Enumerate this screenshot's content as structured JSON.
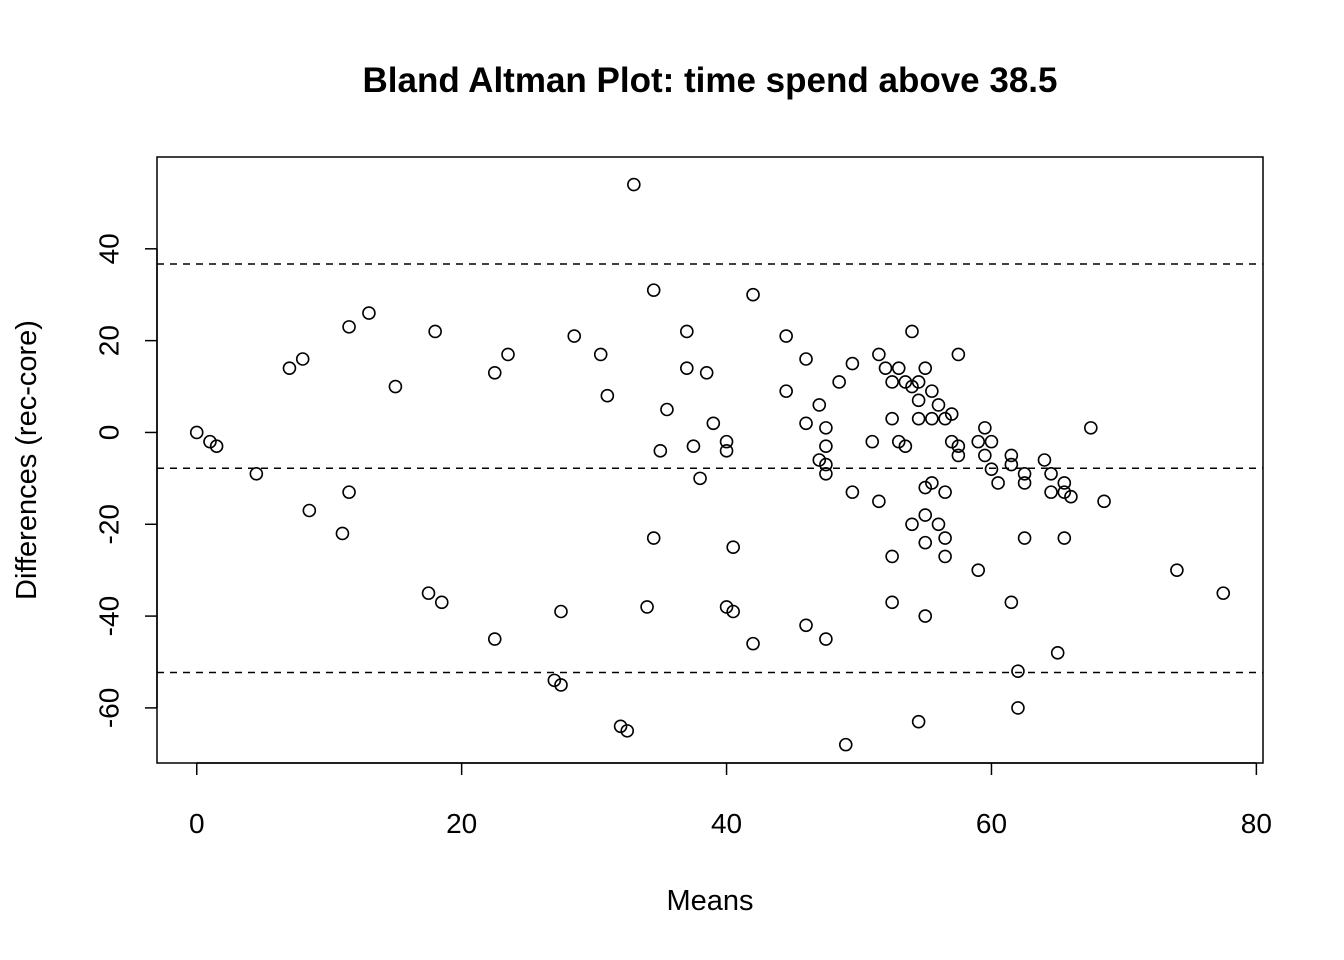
{
  "chart_data": {
    "type": "scatter",
    "title": "Bland Altman Plot: time spend above 38.5",
    "xlabel": "Means",
    "ylabel": "Differences (rec-core)",
    "xlim": [
      -3,
      80.5
    ],
    "ylim": [
      -72,
      60
    ],
    "x_ticks": [
      0,
      20,
      40,
      60,
      80
    ],
    "y_ticks": [
      -60,
      -40,
      -20,
      0,
      20,
      40
    ],
    "grid": false,
    "legend": "none",
    "marker": "open-circle",
    "hlines": [
      {
        "y": 36.7,
        "style": "dashed"
      },
      {
        "y": -7.8,
        "style": "dashed"
      },
      {
        "y": -52.3,
        "style": "dashed"
      }
    ],
    "points": [
      [
        0,
        0
      ],
      [
        1,
        -2
      ],
      [
        1.5,
        -3
      ],
      [
        4.5,
        -9
      ],
      [
        7,
        14
      ],
      [
        8,
        16
      ],
      [
        8.5,
        -17
      ],
      [
        11,
        -22
      ],
      [
        11.5,
        23
      ],
      [
        11.5,
        -13
      ],
      [
        13,
        26
      ],
      [
        15,
        10
      ],
      [
        17.5,
        -35
      ],
      [
        18,
        22
      ],
      [
        18.5,
        -37
      ],
      [
        22.5,
        13
      ],
      [
        22.5,
        -45
      ],
      [
        23.5,
        17
      ],
      [
        27,
        -54
      ],
      [
        27.5,
        -55
      ],
      [
        27.5,
        -39
      ],
      [
        28.5,
        21
      ],
      [
        30.5,
        17
      ],
      [
        31,
        8
      ],
      [
        32,
        -64
      ],
      [
        32.5,
        -65
      ],
      [
        33,
        54
      ],
      [
        34,
        -38
      ],
      [
        34.5,
        31
      ],
      [
        34.5,
        -23
      ],
      [
        35,
        -4
      ],
      [
        35.5,
        5
      ],
      [
        37,
        22
      ],
      [
        37,
        14
      ],
      [
        37.5,
        -3
      ],
      [
        38,
        -10
      ],
      [
        38.5,
        13
      ],
      [
        39,
        2
      ],
      [
        40,
        -2
      ],
      [
        40,
        -4
      ],
      [
        40,
        -38
      ],
      [
        40.5,
        -39
      ],
      [
        40.5,
        -25
      ],
      [
        42,
        30
      ],
      [
        42,
        -46
      ],
      [
        44.5,
        21
      ],
      [
        44.5,
        9
      ],
      [
        46,
        16
      ],
      [
        46,
        2
      ],
      [
        46,
        -42
      ],
      [
        47,
        6
      ],
      [
        47,
        -6
      ],
      [
        47.5,
        1
      ],
      [
        47.5,
        -3
      ],
      [
        47.5,
        -7
      ],
      [
        47.5,
        -9
      ],
      [
        47.5,
        -45
      ],
      [
        48.5,
        11
      ],
      [
        49,
        -68
      ],
      [
        49.5,
        15
      ],
      [
        49.5,
        -13
      ],
      [
        51,
        -2
      ],
      [
        51.5,
        17
      ],
      [
        51.5,
        -15
      ],
      [
        52,
        14
      ],
      [
        52.5,
        11
      ],
      [
        52.5,
        3
      ],
      [
        52.5,
        -27
      ],
      [
        52.5,
        -37
      ],
      [
        53,
        14
      ],
      [
        53,
        -2
      ],
      [
        53.5,
        11
      ],
      [
        53.5,
        -3
      ],
      [
        54,
        22
      ],
      [
        54,
        10
      ],
      [
        54,
        -20
      ],
      [
        54.5,
        11
      ],
      [
        54.5,
        7
      ],
      [
        54.5,
        3
      ],
      [
        54.5,
        -63
      ],
      [
        55,
        14
      ],
      [
        55,
        -12
      ],
      [
        55,
        -18
      ],
      [
        55,
        -24
      ],
      [
        55,
        -40
      ],
      [
        55.5,
        9
      ],
      [
        55.5,
        3
      ],
      [
        55.5,
        -11
      ],
      [
        56,
        6
      ],
      [
        56,
        -20
      ],
      [
        56.5,
        3
      ],
      [
        56.5,
        -13
      ],
      [
        56.5,
        -23
      ],
      [
        56.5,
        -27
      ],
      [
        57,
        4
      ],
      [
        57,
        -2
      ],
      [
        57.5,
        17
      ],
      [
        57.5,
        -3
      ],
      [
        57.5,
        -5
      ],
      [
        59,
        -2
      ],
      [
        59,
        -30
      ],
      [
        59.5,
        1
      ],
      [
        59.5,
        -5
      ],
      [
        60,
        -2
      ],
      [
        60,
        -8
      ],
      [
        60.5,
        -11
      ],
      [
        61.5,
        -5
      ],
      [
        61.5,
        -7
      ],
      [
        61.5,
        -37
      ],
      [
        62,
        -52
      ],
      [
        62,
        -60
      ],
      [
        62.5,
        -9
      ],
      [
        62.5,
        -11
      ],
      [
        62.5,
        -23
      ],
      [
        64,
        -6
      ],
      [
        64.5,
        -9
      ],
      [
        64.5,
        -13
      ],
      [
        65,
        -48
      ],
      [
        65.5,
        -11
      ],
      [
        65.5,
        -13
      ],
      [
        65.5,
        -23
      ],
      [
        66,
        -14
      ],
      [
        67.5,
        1
      ],
      [
        68.5,
        -15
      ],
      [
        74,
        -30
      ],
      [
        77.5,
        -35
      ]
    ]
  }
}
